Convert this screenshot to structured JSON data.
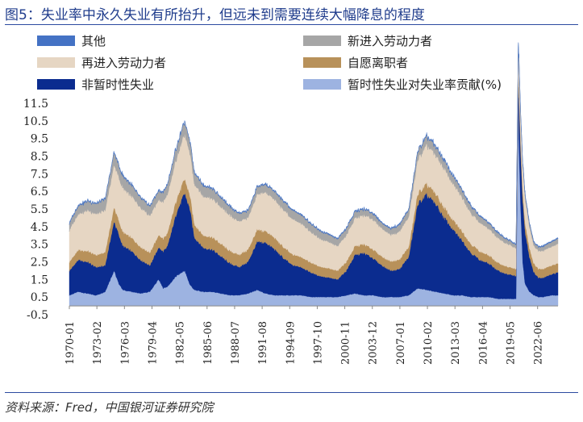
{
  "title": "图5：失业率中永久失业有所抬升，但远未到需要连续大幅降息的程度",
  "source": "资料来源：Fred，中国银河证券研究院",
  "chart_data": {
    "type": "area",
    "stacked": true,
    "ylim": [
      -0.5,
      11.5
    ],
    "yticks": [
      "11.5",
      "10.5",
      "9.5",
      "8.5",
      "7.5",
      "6.5",
      "5.5",
      "4.5",
      "3.5",
      "2.5",
      "1.5",
      "0.5",
      "-0.5"
    ],
    "xticks": [
      "1970-01",
      "1973-02",
      "1976-03",
      "1979-04",
      "1982-05",
      "1985-06",
      "1988-07",
      "1991-08",
      "1994-09",
      "1997-10",
      "2000-11",
      "2003-12",
      "2007-01",
      "2010-02",
      "2013-03",
      "2016-04",
      "2019-05",
      "2022-06"
    ],
    "x_start": 1970.0,
    "x_end": 2024.7,
    "legend": [
      {
        "name": "其他",
        "color": "#4472c4"
      },
      {
        "name": "新进入劳动力者",
        "color": "#a6a6a6"
      },
      {
        "name": "再进入劳动力者",
        "color": "#e6d6c3"
      },
      {
        "name": "自愿离职者",
        "color": "#b8915a"
      },
      {
        "name": "非暂时性失业",
        "color": "#0b2c8f"
      },
      {
        "name": "暂时性失业对失业率贡献(%)",
        "color": "#9db3e1"
      }
    ],
    "series": [
      {
        "name": "暂时性失业对失业率贡献(%)",
        "color": "#9db3e1",
        "x": [
          1970,
          1971,
          1972,
          1973,
          1974,
          1975,
          1975.5,
          1976,
          1977,
          1978,
          1979,
          1980,
          1980.5,
          1981,
          1982,
          1982.9,
          1983.5,
          1984,
          1985,
          1986,
          1987,
          1988,
          1989,
          1990,
          1991,
          1992,
          1993,
          1994,
          1995,
          1996,
          1997,
          1998,
          1999,
          2000,
          2001,
          2002,
          2003,
          2004,
          2005,
          2006,
          2007,
          2008,
          2009,
          2010,
          2011,
          2012,
          2013,
          2014,
          2015,
          2016,
          2017,
          2018,
          2019,
          2020,
          2020.25,
          2020.33,
          2020.5,
          2020.75,
          2021,
          2021.5,
          2022,
          2022.5,
          2023,
          2024,
          2024.7
        ],
        "y": [
          0.6,
          0.8,
          0.7,
          0.6,
          0.8,
          2.0,
          1.3,
          0.9,
          0.8,
          0.7,
          0.8,
          1.5,
          1.0,
          1.1,
          1.7,
          2.0,
          1.2,
          0.9,
          0.8,
          0.8,
          0.7,
          0.6,
          0.6,
          0.7,
          0.9,
          0.7,
          0.6,
          0.6,
          0.6,
          0.6,
          0.5,
          0.5,
          0.5,
          0.5,
          0.6,
          0.7,
          0.6,
          0.6,
          0.5,
          0.5,
          0.5,
          0.6,
          1.0,
          0.9,
          0.8,
          0.7,
          0.6,
          0.6,
          0.5,
          0.5,
          0.5,
          0.4,
          0.4,
          0.4,
          11.5,
          9.5,
          6.0,
          2.5,
          1.3,
          0.8,
          0.6,
          0.5,
          0.5,
          0.6,
          0.6
        ]
      },
      {
        "name": "非暂时性失业",
        "color": "#0b2c8f",
        "x": [
          1970,
          1971,
          1972,
          1973,
          1974,
          1975,
          1975.5,
          1976,
          1977,
          1978,
          1979,
          1980,
          1980.5,
          1981,
          1982,
          1982.9,
          1983.5,
          1984,
          1985,
          1986,
          1987,
          1988,
          1989,
          1990,
          1991,
          1992,
          1993,
          1994,
          1995,
          1996,
          1997,
          1998,
          1999,
          2000,
          2001,
          2002,
          2003,
          2004,
          2005,
          2006,
          2007,
          2008,
          2009,
          2010,
          2011,
          2012,
          2013,
          2014,
          2015,
          2016,
          2017,
          2018,
          2019,
          2020,
          2020.25,
          2020.33,
          2020.5,
          2020.75,
          2021,
          2021.5,
          2022,
          2022.5,
          2023,
          2024,
          2024.7
        ],
        "y": [
          1.4,
          1.8,
          1.8,
          1.6,
          1.5,
          2.8,
          2.8,
          2.5,
          2.3,
          1.9,
          1.5,
          1.8,
          2.1,
          2.3,
          3.6,
          4.4,
          4.3,
          3.0,
          2.5,
          2.4,
          2.1,
          1.8,
          1.6,
          1.8,
          2.7,
          2.9,
          2.6,
          2.1,
          1.7,
          1.6,
          1.4,
          1.2,
          1.1,
          1.0,
          1.4,
          2.2,
          2.4,
          2.1,
          1.8,
          1.5,
          1.6,
          2.2,
          4.8,
          5.4,
          5.0,
          4.3,
          3.7,
          3.1,
          2.5,
          2.1,
          1.9,
          1.6,
          1.4,
          1.3,
          1.3,
          2.5,
          3.0,
          3.5,
          3.0,
          2.0,
          1.3,
          1.1,
          1.1,
          1.2,
          1.3
        ]
      },
      {
        "name": "自愿离职者",
        "color": "#b8915a",
        "x": [
          1970,
          1975,
          1980,
          1982.9,
          1985,
          1990,
          1995,
          2000,
          2005,
          2010,
          2015,
          2020,
          2020.33,
          2021,
          2024.7
        ],
        "y": [
          0.5,
          0.8,
          0.7,
          0.8,
          0.7,
          0.7,
          0.6,
          0.5,
          0.5,
          0.6,
          0.5,
          0.4,
          0.6,
          0.5,
          0.5
        ]
      },
      {
        "name": "再进入劳动力者",
        "color": "#e6d6c3",
        "x": [
          1970,
          1972,
          1975,
          1976,
          1978,
          1980,
          1982.9,
          1984,
          1986,
          1988,
          1990,
          1992,
          1994,
          1996,
          1998,
          2000,
          2002,
          2004,
          2006,
          2008,
          2010,
          2012,
          2014,
          2016,
          2018,
          2020,
          2020.33,
          2021,
          2022,
          2024.7
        ],
        "y": [
          1.8,
          2.3,
          2.4,
          2.5,
          2.2,
          2.0,
          2.5,
          2.3,
          2.2,
          2.0,
          1.8,
          2.2,
          2.1,
          1.9,
          1.6,
          1.4,
          1.6,
          1.7,
          1.5,
          1.7,
          2.2,
          2.2,
          1.9,
          1.6,
          1.4,
          1.2,
          1.5,
          1.4,
          1.0,
          1.1
        ]
      },
      {
        "name": "新进入劳动力者",
        "color": "#a6a6a6",
        "x": [
          1970,
          1975,
          1980,
          1982.9,
          1985,
          1990,
          1995,
          2000,
          2005,
          2010,
          2015,
          2020,
          2020.33,
          2022,
          2024.7
        ],
        "y": [
          0.4,
          0.7,
          0.5,
          0.7,
          0.6,
          0.4,
          0.5,
          0.4,
          0.3,
          0.5,
          0.4,
          0.2,
          0.2,
          0.2,
          0.3
        ]
      },
      {
        "name": "其他",
        "color": "#4472c4",
        "x": [
          1970,
          1980,
          1990,
          2000,
          2010,
          2020,
          2024.7
        ],
        "y": [
          0.05,
          0.05,
          0.05,
          0.05,
          0.05,
          0.05,
          0.05
        ]
      }
    ]
  }
}
